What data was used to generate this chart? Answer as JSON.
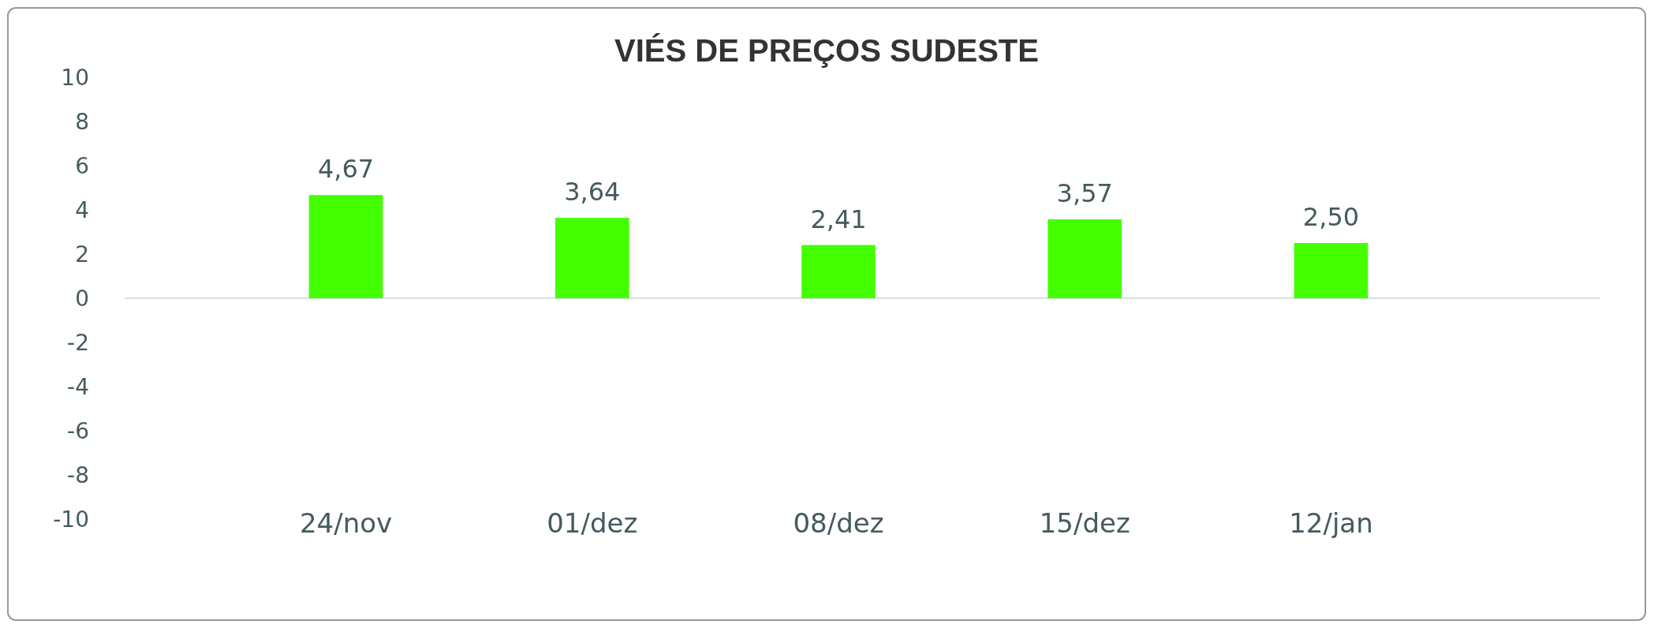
{
  "chart_data": {
    "type": "bar",
    "title": "VIÉS DE PREÇOS SUDESTE",
    "categories": [
      "24/nov",
      "01/dez",
      "08/dez",
      "15/dez",
      "12/jan"
    ],
    "values": [
      4.67,
      3.64,
      2.41,
      3.57,
      2.5
    ],
    "value_labels": [
      "4,67",
      "3,64",
      "2,41",
      "3,57",
      "2,50"
    ],
    "color": "#44ff00",
    "ylim": [
      -10,
      10
    ],
    "yticks": [
      -10,
      -8,
      -6,
      -4,
      -2,
      0,
      2,
      4,
      6,
      8,
      10
    ]
  }
}
